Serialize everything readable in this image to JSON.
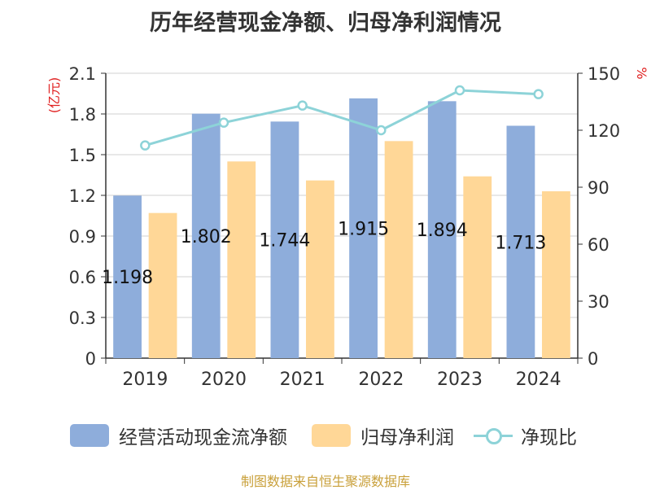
{
  "chart_data": {
    "type": "bar",
    "title": "历年经营现金净额、归母净利润情况",
    "categories": [
      "2019",
      "2020",
      "2021",
      "2022",
      "2023",
      "2024"
    ],
    "series": [
      {
        "name": "经营活动现金流净额",
        "type": "bar",
        "axis": "left",
        "values": [
          1.198,
          1.802,
          1.744,
          1.915,
          1.894,
          1.713
        ],
        "color": "#8eaddb"
      },
      {
        "name": "归母净利润",
        "type": "bar",
        "axis": "left",
        "values": [
          1.07,
          1.45,
          1.31,
          1.6,
          1.34,
          1.23
        ],
        "color": "#ffd797"
      },
      {
        "name": "净现比",
        "type": "line",
        "axis": "right",
        "values": [
          112,
          124,
          133,
          120,
          141,
          139
        ],
        "color": "#8dd3d8"
      }
    ],
    "data_labels": [
      "1.198",
      "1.802",
      "1.744",
      "1.915",
      "1.894",
      "1.713"
    ],
    "y_left": {
      "label": "(亿元)",
      "ylim": [
        0,
        2.1
      ],
      "ticks": [
        "0",
        "0.3",
        "0.6",
        "0.9",
        "1.2",
        "1.5",
        "1.8",
        "2.1"
      ]
    },
    "y_right": {
      "label": "%",
      "ylim": [
        0,
        150
      ],
      "ticks": [
        "0",
        "30",
        "60",
        "90",
        "120",
        "150"
      ]
    },
    "grid": true,
    "legend_position": "bottom"
  },
  "source": "制图数据来自恒生聚源数据库"
}
